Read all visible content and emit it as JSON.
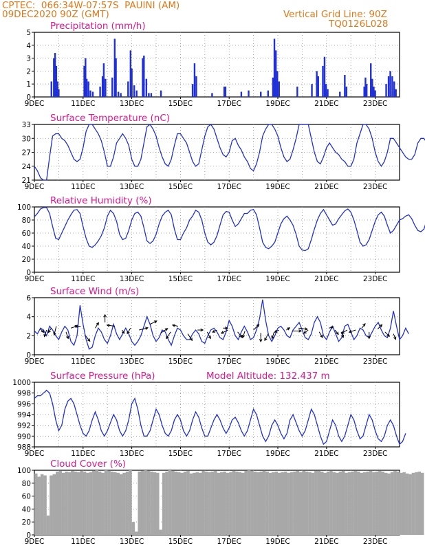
{
  "header": {
    "line1": "CPTEC:  066:34W-07:57S  PAUINI (AM)",
    "line2": "09DEC2020 90Z (GMT)",
    "right1": "Vertical Grid Line: 90Z",
    "right2": "TQ0126L028",
    "model_altitude": "Model Altitude: 132.437 m"
  },
  "colors": {
    "header": "#e07818",
    "title": "#e0188c",
    "series": "#2030d8",
    "cloud": "#a8a8a8",
    "grid": "#909090"
  },
  "x_tick_labels": [
    "9DEC",
    "11DEC",
    "13DEC",
    "15DEC",
    "17DEC",
    "19DEC",
    "21DEC",
    "23DEC"
  ],
  "chart_data": [
    {
      "type": "bar",
      "title": "Precipitation (mm/h)",
      "x_range_days": [
        9,
        24
      ],
      "ylim": [
        0,
        5
      ],
      "yticks": [
        "0",
        "1",
        "2",
        "3",
        "4",
        "5"
      ],
      "bars": [
        [
          9.7,
          1.2
        ],
        [
          9.8,
          3.0
        ],
        [
          9.85,
          3.4
        ],
        [
          9.9,
          2.4
        ],
        [
          9.95,
          1.2
        ],
        [
          10.0,
          0.6
        ],
        [
          11.05,
          2.4
        ],
        [
          11.1,
          3.0
        ],
        [
          11.15,
          1.4
        ],
        [
          11.22,
          1.2
        ],
        [
          11.3,
          0.5
        ],
        [
          11.4,
          0.4
        ],
        [
          11.7,
          0.8
        ],
        [
          11.8,
          1.6
        ],
        [
          11.85,
          2.6
        ],
        [
          11.92,
          1.4
        ],
        [
          12.2,
          1.5
        ],
        [
          12.3,
          4.5
        ],
        [
          12.35,
          3.0
        ],
        [
          12.45,
          0.4
        ],
        [
          12.55,
          0.3
        ],
        [
          12.85,
          1.2
        ],
        [
          12.95,
          3.6
        ],
        [
          13.0,
          2.2
        ],
        [
          13.1,
          0.9
        ],
        [
          13.2,
          0.5
        ],
        [
          13.45,
          3.0
        ],
        [
          13.5,
          3.2
        ],
        [
          13.6,
          1.4
        ],
        [
          13.7,
          0.3
        ],
        [
          13.8,
          0.3
        ],
        [
          14.2,
          0.5
        ],
        [
          15.5,
          1.0
        ],
        [
          15.58,
          2.6
        ],
        [
          15.65,
          1.6
        ],
        [
          16.3,
          0.3
        ],
        [
          16.8,
          0.8
        ],
        [
          16.85,
          0.8
        ],
        [
          17.5,
          0.4
        ],
        [
          17.8,
          0.5
        ],
        [
          18.3,
          0.4
        ],
        [
          18.6,
          0.5
        ],
        [
          18.8,
          1.5
        ],
        [
          18.86,
          4.5
        ],
        [
          18.92,
          3.6
        ],
        [
          18.98,
          2.0
        ],
        [
          19.05,
          1.2
        ],
        [
          19.8,
          0.8
        ],
        [
          20.4,
          1.0
        ],
        [
          20.6,
          2.0
        ],
        [
          20.66,
          1.6
        ],
        [
          20.85,
          2.4
        ],
        [
          20.92,
          3.1
        ],
        [
          20.98,
          1.0
        ],
        [
          21.05,
          0.6
        ],
        [
          21.55,
          0.4
        ],
        [
          21.75,
          1.7
        ],
        [
          21.82,
          0.8
        ],
        [
          22.55,
          0.8
        ],
        [
          22.6,
          1.5
        ],
        [
          22.65,
          1.0
        ],
        [
          22.82,
          2.6
        ],
        [
          22.88,
          1.4
        ],
        [
          22.94,
          0.8
        ],
        [
          23.0,
          0.5
        ],
        [
          23.45,
          1.0
        ],
        [
          23.55,
          1.6
        ],
        [
          23.62,
          2.0
        ],
        [
          23.7,
          1.6
        ],
        [
          23.78,
          1.2
        ],
        [
          23.85,
          0.6
        ]
      ]
    },
    {
      "type": "line",
      "title": "Surface Temperature (nC)",
      "x_range_days": [
        9,
        24
      ],
      "ylim": [
        21,
        33
      ],
      "yticks": [
        "21",
        "24",
        "27",
        "30",
        "33"
      ],
      "x_start": 9,
      "x_step": 0.125,
      "values": [
        24,
        23,
        21.5,
        21,
        21,
        26,
        30.5,
        31,
        31,
        30,
        29.5,
        28.5,
        27,
        25.5,
        25,
        25.5,
        28,
        31.5,
        33,
        33,
        32,
        31,
        29.5,
        27,
        24,
        24,
        26,
        29,
        30,
        31,
        30,
        28.5,
        25.5,
        24,
        24,
        25.5,
        29,
        32.5,
        33,
        32,
        30.5,
        28,
        26,
        24.5,
        24,
        25.5,
        28.5,
        31,
        31,
        30,
        29,
        27,
        25,
        24,
        24.5,
        27.5,
        30.5,
        32.5,
        33,
        32,
        30,
        28,
        26.5,
        26,
        27,
        29.5,
        30,
        28.5,
        27.5,
        26,
        25,
        23.5,
        23,
        24.5,
        27,
        30.5,
        32,
        33,
        33,
        32,
        30.5,
        28,
        26,
        25,
        25.5,
        27.5,
        30,
        33,
        33.5,
        33.5,
        33,
        30,
        27,
        25,
        24.5,
        26,
        28,
        29,
        28,
        27,
        26.5,
        25.5,
        25,
        24,
        24,
        25.5,
        29,
        31,
        33,
        33,
        32,
        30,
        27,
        25,
        24,
        25,
        27,
        30,
        30,
        29,
        28,
        27,
        26,
        25.5,
        25.5,
        26.5,
        29,
        30,
        30,
        29,
        28,
        27,
        27.5
      ]
    },
    {
      "type": "line",
      "title": "Relative Humidity (%)",
      "x_range_days": [
        9,
        24
      ],
      "ylim": [
        0,
        100
      ],
      "yticks": [
        "0",
        "20",
        "40",
        "60",
        "80",
        "100"
      ],
      "x_start": 9,
      "x_step": 0.125,
      "values": [
        85,
        90,
        97,
        99,
        99,
        90,
        70,
        52,
        50,
        60,
        70,
        80,
        88,
        95,
        96,
        90,
        70,
        52,
        40,
        38,
        42,
        48,
        56,
        68,
        86,
        95,
        90,
        78,
        58,
        50,
        52,
        64,
        80,
        90,
        92,
        86,
        68,
        48,
        44,
        48,
        58,
        74,
        86,
        92,
        95,
        88,
        66,
        50,
        50,
        60,
        68,
        80,
        86,
        95,
        92,
        80,
        60,
        46,
        42,
        46,
        56,
        72,
        88,
        93,
        92,
        80,
        70,
        74,
        82,
        90,
        90,
        95,
        96,
        88,
        68,
        46,
        38,
        36,
        40,
        46,
        60,
        74,
        82,
        86,
        80,
        72,
        58,
        40,
        34,
        33,
        36,
        50,
        66,
        80,
        90,
        96,
        88,
        80,
        72,
        74,
        82,
        88,
        94,
        97,
        92,
        80,
        64,
        46,
        40,
        42,
        50,
        64,
        78,
        88,
        92,
        86,
        72,
        60,
        64,
        72,
        80,
        82,
        86,
        88,
        82,
        72,
        64,
        62,
        66,
        80,
        82,
        82
      ]
    },
    {
      "type": "line",
      "title": "Surface Wind (m/s)",
      "x_range_days": [
        9,
        24
      ],
      "ylim": [
        0,
        6
      ],
      "yticks": [
        "0",
        "2",
        "4",
        "6"
      ],
      "x_start": 9,
      "x_step": 0.125,
      "values": [
        2.5,
        2.2,
        2.8,
        2.6,
        2.0,
        3.0,
        2.6,
        2.0,
        1.6,
        2.4,
        3.0,
        2.6,
        1.4,
        1.0,
        2.0,
        5.2,
        3.2,
        1.6,
        0.6,
        0.8,
        2.0,
        2.8,
        2.4,
        1.6,
        1.2,
        2.0,
        3.2,
        2.2,
        1.6,
        2.2,
        2.8,
        2.2,
        1.4,
        1.0,
        1.4,
        2.0,
        3.0,
        4.0,
        3.2,
        2.0,
        1.4,
        1.8,
        2.6,
        2.4,
        1.6,
        1.0,
        2.0,
        2.8,
        2.6,
        2.0,
        1.6,
        1.6,
        2.2,
        2.6,
        2.2,
        1.4,
        1.2,
        2.0,
        2.6,
        2.8,
        2.4,
        1.8,
        1.6,
        2.4,
        3.6,
        3.0,
        2.0,
        1.6,
        2.4,
        3.0,
        2.4,
        1.6,
        1.8,
        2.6,
        3.8,
        5.8,
        3.6,
        2.0,
        1.4,
        2.0,
        2.8,
        3.0,
        2.6,
        2.0,
        1.8,
        2.6,
        3.0,
        3.4,
        2.6,
        1.8,
        1.6,
        2.2,
        3.4,
        4.0,
        3.4,
        2.0,
        1.6,
        2.4,
        3.0,
        2.2,
        1.4,
        1.8,
        3.0,
        3.2,
        2.4,
        1.6,
        2.0,
        2.8,
        2.6,
        2.0,
        1.8,
        2.4,
        3.0,
        3.4,
        2.6,
        2.0,
        1.8,
        2.8,
        4.6,
        3.0,
        1.6,
        2.0,
        2.8,
        2.2
      ]
    },
    {
      "type": "line",
      "title": "Surface Pressure (hPa)",
      "x_range_days": [
        9,
        24
      ],
      "ylim": [
        988,
        1000
      ],
      "yticks": [
        "988",
        "990",
        "992",
        "994",
        "996",
        "998",
        "1000"
      ],
      "x_start": 9,
      "x_step": 0.125,
      "values": [
        997,
        997.5,
        997.5,
        998,
        998.5,
        998,
        996,
        993,
        991,
        992,
        995,
        996.5,
        997,
        996,
        994,
        992,
        990.5,
        990,
        991,
        993,
        994.5,
        993,
        991,
        990,
        991,
        992.5,
        994,
        993,
        991,
        990,
        991,
        993,
        996,
        997,
        995,
        992,
        990,
        990,
        991,
        993,
        995,
        994,
        992,
        990.5,
        990,
        991,
        993,
        994,
        993,
        991,
        990,
        991,
        993,
        994.5,
        993.5,
        991.5,
        990,
        990,
        991.5,
        993,
        994,
        993,
        991.5,
        990.5,
        991.5,
        993,
        993.5,
        992.5,
        991,
        990,
        991,
        993,
        995,
        994,
        992,
        990,
        989,
        990,
        992,
        993,
        992,
        990.5,
        989.5,
        990.5,
        993,
        994,
        992.5,
        991,
        990,
        991,
        993,
        995,
        994,
        992,
        990,
        988.5,
        989,
        991,
        993,
        992,
        990,
        989,
        990,
        992,
        994,
        993,
        991,
        989.5,
        990,
        992,
        994,
        993,
        991,
        989.5,
        989,
        990,
        992,
        993,
        992,
        990,
        988.5,
        989,
        990.5
      ]
    },
    {
      "type": "area",
      "title": "Cloud Cover (%)",
      "x_range_days": [
        9,
        24
      ],
      "ylim": [
        0,
        100
      ],
      "yticks": [
        "0",
        "20",
        "40",
        "60",
        "80",
        "100"
      ],
      "x_start": 9,
      "x_step": 0.125,
      "values": [
        95,
        90,
        94,
        92,
        30,
        92,
        94,
        98,
        99,
        96,
        98,
        97,
        99,
        98,
        97,
        99,
        98,
        96,
        97,
        99,
        100,
        98,
        96,
        100,
        99,
        98,
        97,
        96,
        94,
        96,
        98,
        100,
        20,
        5,
        98,
        99,
        100,
        99,
        98,
        97,
        96,
        8,
        96,
        98,
        100,
        99,
        98,
        97,
        96,
        98,
        99,
        95,
        96,
        97,
        96,
        99,
        98,
        97,
        98,
        99,
        96,
        97,
        98,
        96,
        97,
        99,
        98,
        97,
        96,
        99,
        100,
        99,
        98,
        97,
        98,
        99,
        98,
        96,
        97,
        98,
        96,
        97,
        98,
        96,
        97,
        98,
        99,
        97,
        99,
        98,
        97,
        96,
        99,
        99,
        98,
        96,
        98,
        99,
        97,
        96,
        98,
        99,
        96,
        97,
        98,
        99,
        98,
        96,
        97,
        98,
        99,
        97,
        98,
        99,
        98,
        96,
        95,
        97,
        99,
        98,
        96,
        97,
        95,
        94,
        96,
        97,
        98,
        96
      ]
    }
  ],
  "wind_vectors": [
    [
      9.25,
      2.7,
      0.3,
      -0.3
    ],
    [
      9.5,
      2.6,
      -0.2,
      -0.6
    ],
    [
      9.7,
      2.8,
      -0.3,
      -0.4
    ],
    [
      9.9,
      3.0,
      -0.2,
      -0.8
    ],
    [
      10.3,
      2.4,
      0.2,
      -0.6
    ],
    [
      10.5,
      2.8,
      0.6,
      0.2
    ],
    [
      10.9,
      3.0,
      -0.5,
      0
    ],
    [
      11.1,
      2.0,
      0.4,
      -0.5
    ],
    [
      11.5,
      2.8,
      0.3,
      0.5
    ],
    [
      11.9,
      3.4,
      0,
      0.7
    ],
    [
      12.3,
      3.0,
      -0.7,
      0.1
    ],
    [
      12.6,
      2.6,
      0.2,
      -0.3
    ],
    [
      12.95,
      2.8,
      -0.3,
      -0.5
    ],
    [
      13.3,
      2.6,
      0.8,
      0.2
    ],
    [
      13.75,
      3.2,
      0.6,
      0.3
    ],
    [
      14.2,
      2.3,
      0.6,
      0.4
    ],
    [
      14.6,
      2.4,
      -0.4,
      -0.6
    ],
    [
      14.9,
      3.0,
      -0.5,
      0.1
    ],
    [
      15.3,
      2.2,
      0.4,
      -0.6
    ],
    [
      15.7,
      2.6,
      0.5,
      0
    ],
    [
      16.1,
      2.4,
      0.3,
      -0.6
    ],
    [
      16.5,
      2.6,
      -0.4,
      -0.2
    ],
    [
      16.75,
      2.8,
      0.4,
      0
    ],
    [
      16.95,
      2.6,
      -0.6,
      -0.3
    ],
    [
      17.35,
      2.4,
      0.4,
      -0.5
    ],
    [
      17.65,
      2.5,
      -0.2,
      -0.6
    ],
    [
      18.0,
      2.6,
      0.5,
      0.5
    ],
    [
      18.3,
      2.3,
      0,
      -0.8
    ],
    [
      18.6,
      2.2,
      -0.3,
      -0.6
    ],
    [
      18.85,
      2.4,
      -0.2,
      -0.6
    ],
    [
      19.05,
      2.6,
      -0.4,
      -0.2
    ],
    [
      19.35,
      2.6,
      0.3,
      0.2
    ],
    [
      19.6,
      2.5,
      0.8,
      0
    ],
    [
      19.85,
      2.8,
      0.8,
      -0.1
    ],
    [
      20.25,
      2.6,
      -0.4,
      -0.3
    ],
    [
      20.7,
      2.4,
      0.3,
      -0.5
    ],
    [
      21.1,
      2.8,
      0.4,
      0.1
    ],
    [
      21.35,
      2.6,
      0.3,
      -0.4
    ],
    [
      21.6,
      2.4,
      0.2,
      -0.5
    ],
    [
      21.85,
      2.6,
      -0.5,
      -0.3
    ],
    [
      22.2,
      2.6,
      -0.6,
      -0.2
    ],
    [
      22.45,
      2.8,
      0.3,
      0.4
    ],
    [
      22.75,
      2.4,
      0,
      -0.6
    ],
    [
      23.1,
      2.7,
      0.4,
      0.4
    ],
    [
      23.4,
      2.4,
      0.4,
      -0.4
    ],
    [
      23.75,
      2.2,
      0.2,
      -0.5
    ]
  ]
}
